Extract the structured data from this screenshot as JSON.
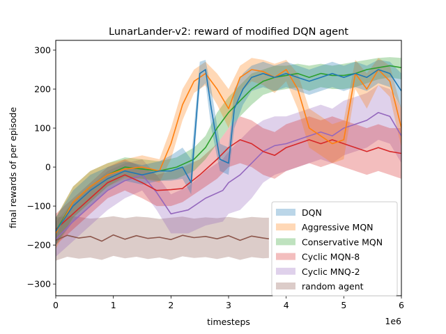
{
  "chart_data": {
    "type": "line",
    "title": "LunarLander-v2: reward of modified DQN agent",
    "xlabel": "timesteps",
    "ylabel": "final rewards of per episode",
    "x_offset_label": "1e6",
    "xlim": [
      0,
      6
    ],
    "ylim": [
      -330,
      325
    ],
    "x_ticks": [
      0,
      1,
      2,
      3,
      4,
      5,
      6
    ],
    "x_tick_labels": [
      "0",
      "1",
      "2",
      "3",
      "4",
      "5",
      "6"
    ],
    "y_ticks": [
      -300,
      -200,
      -100,
      0,
      100,
      200,
      300
    ],
    "y_tick_labels": [
      "−300",
      "−200",
      "−100",
      "0",
      "100",
      "200",
      "300"
    ],
    "grid": false,
    "legend_position": "lower-right",
    "series": [
      {
        "name": "random agent",
        "color": "#8c564b",
        "band_color": "#c9aaa4",
        "x": [
          0.0,
          0.2,
          0.4,
          0.6,
          0.8,
          1.0,
          1.2,
          1.4,
          1.6,
          1.8,
          2.0,
          2.2,
          2.4,
          2.6,
          2.8,
          3.0,
          3.2,
          3.4,
          3.6,
          3.7
        ],
        "y": [
          -188,
          -175,
          -182,
          -178,
          -190,
          -174,
          -185,
          -176,
          -183,
          -180,
          -186,
          -175,
          -181,
          -178,
          -184,
          -176,
          -188,
          -177,
          -182,
          -184
        ],
        "lower": [
          -240,
          -230,
          -235,
          -232,
          -238,
          -228,
          -234,
          -230,
          -236,
          -232,
          -238,
          -229,
          -233,
          -231,
          -236,
          -230,
          -238,
          -231,
          -234,
          -233
        ],
        "upper": [
          -130,
          -125,
          -128,
          -132,
          -130,
          -126,
          -131,
          -127,
          -129,
          -133,
          -130,
          -127,
          -132,
          -129,
          -131,
          -128,
          -132,
          -128,
          -130,
          -130
        ]
      },
      {
        "name": "Cyclic MNQ-2",
        "color": "#9467bd",
        "band_color": "#cfbce3",
        "x": [
          0.0,
          0.3,
          0.6,
          0.9,
          1.2,
          1.5,
          1.75,
          2.0,
          2.3,
          2.6,
          2.9,
          3.0,
          3.2,
          3.4,
          3.6,
          3.8,
          4.0,
          4.2,
          4.4,
          4.6,
          4.8,
          5.0,
          5.2,
          5.4,
          5.6,
          5.8,
          6.0
        ],
        "y": [
          -185,
          -140,
          -100,
          -60,
          -35,
          -20,
          -65,
          -120,
          -110,
          -80,
          -60,
          -40,
          -20,
          10,
          40,
          55,
          60,
          70,
          80,
          90,
          80,
          100,
          110,
          120,
          140,
          130,
          80
        ],
        "lower": [
          -230,
          -190,
          -150,
          -110,
          -80,
          -60,
          -110,
          -170,
          -170,
          -150,
          -140,
          -120,
          -110,
          -80,
          -40,
          -20,
          -10,
          0,
          10,
          20,
          10,
          30,
          40,
          50,
          70,
          60,
          10
        ],
        "upper": [
          -140,
          -90,
          -50,
          -10,
          10,
          20,
          -20,
          -70,
          -50,
          -10,
          20,
          40,
          70,
          100,
          120,
          130,
          130,
          140,
          150,
          160,
          150,
          170,
          180,
          190,
          210,
          200,
          150
        ]
      },
      {
        "name": "Cyclic MQN-8",
        "color": "#d62728",
        "band_color": "#f0a3a3",
        "x": [
          0.0,
          0.3,
          0.6,
          0.9,
          1.2,
          1.5,
          1.75,
          2.0,
          2.2,
          2.5,
          2.8,
          3.0,
          3.2,
          3.4,
          3.6,
          3.8,
          4.0,
          4.2,
          4.4,
          4.6,
          4.8,
          5.0,
          5.2,
          5.4,
          5.6,
          5.8,
          6.0
        ],
        "y": [
          -160,
          -120,
          -80,
          -40,
          -20,
          -40,
          -60,
          -58,
          -55,
          -20,
          20,
          50,
          70,
          60,
          40,
          30,
          50,
          60,
          70,
          60,
          70,
          60,
          50,
          40,
          50,
          40,
          35
        ],
        "lower": [
          -200,
          -160,
          -120,
          -80,
          -60,
          -80,
          -100,
          -100,
          -90,
          -60,
          -30,
          0,
          10,
          0,
          -20,
          -30,
          -10,
          0,
          10,
          0,
          10,
          0,
          -10,
          -20,
          -10,
          -20,
          -30
        ],
        "upper": [
          -120,
          -80,
          -40,
          0,
          20,
          0,
          -20,
          -10,
          0,
          20,
          60,
          100,
          130,
          120,
          100,
          90,
          110,
          120,
          130,
          120,
          130,
          120,
          110,
          100,
          110,
          100,
          100
        ]
      },
      {
        "name": "Conservative MQN",
        "color": "#2ca02c",
        "band_color": "#9fd89f",
        "x": [
          0.0,
          0.3,
          0.6,
          0.9,
          1.2,
          1.5,
          1.8,
          2.1,
          2.4,
          2.6,
          2.8,
          3.0,
          3.2,
          3.4,
          3.6,
          3.8,
          4.0,
          4.2,
          4.4,
          4.6,
          4.8,
          5.0,
          5.2,
          5.4,
          5.6,
          5.8,
          6.0
        ],
        "y": [
          -165,
          -90,
          -50,
          -20,
          0,
          -5,
          -10,
          0,
          20,
          50,
          100,
          140,
          170,
          200,
          220,
          230,
          235,
          240,
          230,
          240,
          235,
          235,
          240,
          250,
          255,
          260,
          255
        ],
        "lower": [
          -200,
          -130,
          -90,
          -50,
          -25,
          -30,
          -35,
          -30,
          -10,
          20,
          60,
          100,
          130,
          160,
          185,
          195,
          200,
          205,
          195,
          205,
          200,
          200,
          205,
          215,
          225,
          230,
          225
        ],
        "upper": [
          -130,
          -50,
          -10,
          10,
          25,
          20,
          15,
          25,
          50,
          80,
          140,
          180,
          210,
          240,
          250,
          260,
          260,
          265,
          260,
          265,
          260,
          265,
          270,
          275,
          280,
          282,
          280
        ]
      },
      {
        "name": "Aggressive MQN",
        "color": "#ff7f0e",
        "band_color": "#ffc896",
        "x": [
          0.0,
          0.3,
          0.6,
          0.9,
          1.2,
          1.5,
          1.8,
          2.0,
          2.2,
          2.4,
          2.6,
          2.8,
          3.0,
          3.2,
          3.4,
          3.6,
          3.8,
          4.0,
          4.2,
          4.4,
          4.6,
          4.8,
          5.0,
          5.2,
          5.4,
          5.6,
          5.8,
          6.0
        ],
        "y": [
          -170,
          -90,
          -50,
          -20,
          -5,
          0,
          -10,
          60,
          160,
          220,
          240,
          200,
          150,
          230,
          250,
          245,
          230,
          250,
          200,
          100,
          80,
          60,
          70,
          240,
          200,
          250,
          220,
          100
        ],
        "lower": [
          -210,
          -130,
          -90,
          -50,
          -30,
          -30,
          -40,
          20,
          120,
          190,
          210,
          160,
          100,
          190,
          220,
          210,
          190,
          220,
          150,
          50,
          30,
          10,
          20,
          200,
          150,
          210,
          180,
          50
        ],
        "upper": [
          -130,
          -50,
          -10,
          10,
          20,
          30,
          20,
          100,
          200,
          250,
          270,
          240,
          200,
          260,
          280,
          275,
          265,
          275,
          240,
          150,
          130,
          110,
          120,
          275,
          240,
          280,
          260,
          150
        ]
      },
      {
        "name": "DQN",
        "color": "#1f77b4",
        "band_color": "#a6c8e4",
        "x": [
          0.0,
          0.3,
          0.6,
          0.9,
          1.2,
          1.5,
          1.8,
          2.0,
          2.2,
          2.35,
          2.5,
          2.6,
          2.7,
          2.85,
          3.0,
          3.1,
          3.25,
          3.4,
          3.6,
          3.8,
          4.0,
          4.2,
          4.4,
          4.6,
          4.8,
          5.0,
          5.2,
          5.4,
          5.6,
          5.8,
          6.0
        ],
        "y": [
          -165,
          -100,
          -60,
          -30,
          -10,
          -20,
          -10,
          -10,
          0,
          -40,
          240,
          250,
          150,
          20,
          10,
          150,
          200,
          230,
          240,
          230,
          240,
          230,
          220,
          230,
          240,
          230,
          240,
          230,
          250,
          240,
          195
        ],
        "lower": [
          -200,
          -140,
          -100,
          -60,
          -35,
          -45,
          -35,
          -35,
          -30,
          -70,
          200,
          215,
          100,
          -10,
          -20,
          100,
          160,
          195,
          205,
          195,
          205,
          195,
          185,
          195,
          205,
          195,
          205,
          195,
          215,
          205,
          150
        ],
        "upper": [
          -130,
          -60,
          -20,
          0,
          15,
          5,
          15,
          30,
          50,
          20,
          270,
          275,
          200,
          60,
          50,
          200,
          240,
          260,
          270,
          260,
          270,
          260,
          250,
          260,
          270,
          260,
          270,
          260,
          275,
          270,
          240
        ]
      }
    ],
    "legend": [
      "DQN",
      "Aggressive MQN",
      "Conservative MQN",
      "Cyclic MQN-8",
      "Cyclic MNQ-2",
      "random agent"
    ]
  }
}
